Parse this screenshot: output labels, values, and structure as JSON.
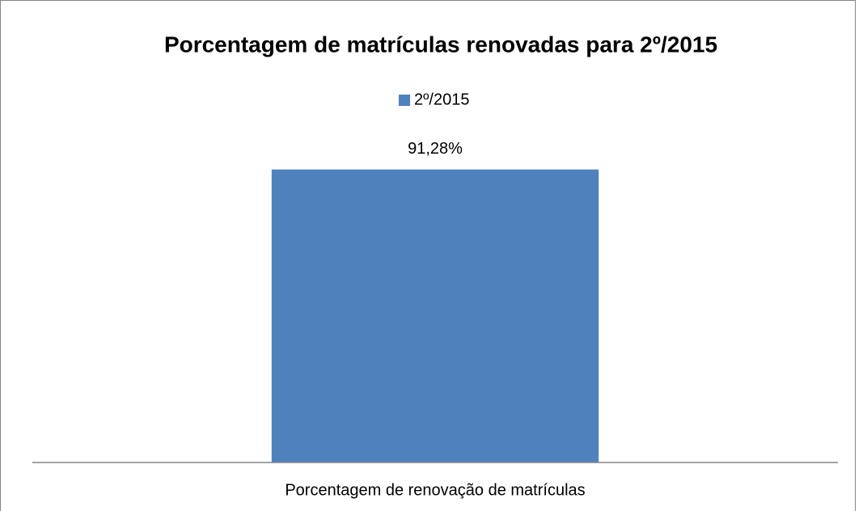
{
  "chart_data": {
    "type": "bar",
    "title": "Porcentagem de matrículas renovadas para 2º/2015",
    "categories": [
      "Porcentagem de renovação de matrículas"
    ],
    "series": [
      {
        "name": "2º/2015",
        "color": "#4f81bd",
        "values": [
          91.28
        ],
        "value_labels": [
          "91,28%"
        ]
      }
    ],
    "ylim": [
      0,
      100
    ],
    "legend": "top"
  }
}
